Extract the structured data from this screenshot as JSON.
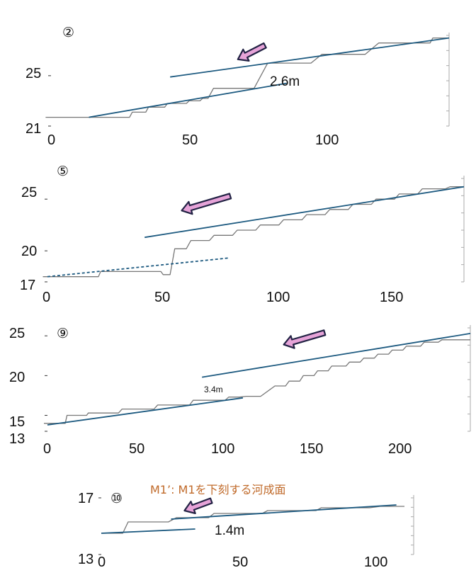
{
  "colors": {
    "profile": "#777777",
    "fit": "#1d5a80",
    "arrow_fill": "#e6a3d8",
    "arrow_edge": "#222244",
    "orange": "#c06a2a",
    "axis": "#aaaaaa"
  },
  "chart_data": [
    {
      "type": "line",
      "panel_label": "②",
      "x_ticks": [
        "0",
        "50",
        "100"
      ],
      "y_ticks": [
        "21",
        "25"
      ],
      "xlim": [
        0,
        147
      ],
      "ylim": [
        21,
        28.2
      ],
      "annotation": "2.6m",
      "series": [
        {
          "role": "profile",
          "points": [
            [
              -2,
              21.7
            ],
            [
              14,
              21.7
            ],
            [
              29,
              21.7
            ],
            [
              30,
              22.1
            ],
            [
              35,
              22.1
            ],
            [
              36,
              22.5
            ],
            [
              42,
              22.5
            ],
            [
              43,
              22.8
            ],
            [
              50,
              22.8
            ],
            [
              51,
              23.0
            ],
            [
              55,
              23.0
            ],
            [
              56,
              23.2
            ],
            [
              58,
              23.2
            ],
            [
              60,
              24.0
            ],
            [
              72,
              24.0
            ],
            [
              75,
              24.0
            ],
            [
              80,
              26.0
            ],
            [
              96,
              26.0
            ],
            [
              100,
              26.7
            ],
            [
              116,
              26.7
            ],
            [
              121,
              27.6
            ],
            [
              140,
              27.6
            ],
            [
              141,
              28.0
            ],
            [
              147,
              28.0
            ]
          ]
        },
        {
          "role": "fit",
          "points": [
            [
              14,
              21.7
            ],
            [
              87,
              24.4
            ]
          ]
        },
        {
          "role": "fit",
          "points": [
            [
              44,
              24.9
            ],
            [
              147,
              28.0
            ]
          ]
        }
      ],
      "arrow": {
        "from": [
          79,
          27.4
        ],
        "to": [
          69,
          26.3
        ]
      }
    },
    {
      "type": "line",
      "panel_label": "⑤",
      "x_ticks": [
        "0",
        "50",
        "100",
        "150"
      ],
      "y_ticks": [
        "17",
        "20",
        "25"
      ],
      "xlim": [
        0,
        180
      ],
      "ylim": [
        17,
        27
      ],
      "series": [
        {
          "role": "profile",
          "points": [
            [
              -2,
              17.5
            ],
            [
              22,
              17.5
            ],
            [
              23,
              18.0
            ],
            [
              49,
              18.0
            ],
            [
              50,
              17.7
            ],
            [
              53,
              17.7
            ],
            [
              55,
              20.2
            ],
            [
              60,
              20.2
            ],
            [
              62,
              21.0
            ],
            [
              70,
              21.0
            ],
            [
              72,
              21.5
            ],
            [
              80,
              21.5
            ],
            [
              82,
              22.0
            ],
            [
              90,
              22.0
            ],
            [
              92,
              22.5
            ],
            [
              100,
              22.5
            ],
            [
              102,
              23.0
            ],
            [
              110,
              23.0
            ],
            [
              112,
              23.5
            ],
            [
              120,
              23.5
            ],
            [
              122,
              24.0
            ],
            [
              130,
              24.0
            ],
            [
              132,
              24.5
            ],
            [
              140,
              24.5
            ],
            [
              142,
              25.0
            ],
            [
              150,
              25.0
            ],
            [
              152,
              25.5
            ],
            [
              160,
              25.5
            ],
            [
              162,
              26.0
            ],
            [
              172,
              26.0
            ],
            [
              174,
              26.2
            ],
            [
              180,
              26.2
            ]
          ]
        },
        {
          "role": "fit",
          "points": [
            [
              42,
              21.3
            ],
            [
              180,
              26.2
            ]
          ]
        },
        {
          "role": "fit_dashed",
          "points": [
            [
              0,
              17.5
            ],
            [
              78,
              19.3
            ]
          ]
        }
      ],
      "arrow": {
        "from": [
          79,
          25.3
        ],
        "to": [
          58,
          23.9
        ]
      }
    },
    {
      "type": "line",
      "panel_label": "⑨",
      "x_ticks": [
        "0",
        "50",
        "100",
        "150",
        "200"
      ],
      "y_ticks": [
        "13",
        "15",
        "20",
        "25"
      ],
      "xlim": [
        0,
        238
      ],
      "ylim": [
        13,
        26
      ],
      "annotation": "3.4m",
      "series": [
        {
          "role": "profile",
          "points": [
            [
              -2,
              14.0
            ],
            [
              10,
              14.0
            ],
            [
              11,
              15.0
            ],
            [
              22,
              15.0
            ],
            [
              23,
              15.3
            ],
            [
              40,
              15.3
            ],
            [
              42,
              15.8
            ],
            [
              60,
              15.8
            ],
            [
              62,
              16.3
            ],
            [
              80,
              16.3
            ],
            [
              82,
              16.9
            ],
            [
              100,
              16.9
            ],
            [
              102,
              17.3
            ],
            [
              108,
              17.3
            ],
            [
              112,
              17.4
            ],
            [
              120,
              17.4
            ],
            [
              128,
              18.7
            ],
            [
              134,
              18.7
            ],
            [
              136,
              19.3
            ],
            [
              142,
              19.3
            ],
            [
              144,
              20.0
            ],
            [
              150,
              20.0
            ],
            [
              152,
              20.6
            ],
            [
              158,
              20.6
            ],
            [
              160,
              21.2
            ],
            [
              168,
              21.2
            ],
            [
              170,
              21.7
            ],
            [
              176,
              21.7
            ],
            [
              178,
              22.2
            ],
            [
              184,
              22.2
            ],
            [
              186,
              22.7
            ],
            [
              192,
              22.7
            ],
            [
              194,
              23.2
            ],
            [
              200,
              23.2
            ],
            [
              202,
              23.7
            ],
            [
              210,
              23.7
            ],
            [
              212,
              24.2
            ],
            [
              220,
              24.2
            ],
            [
              222,
              24.5
            ],
            [
              238,
              24.5
            ]
          ]
        },
        {
          "role": "fit",
          "points": [
            [
              0,
              13.8
            ],
            [
              110,
              17.2
            ]
          ]
        },
        {
          "role": "fit",
          "points": [
            [
              87,
              19.8
            ],
            [
              238,
              25.3
            ]
          ]
        }
      ],
      "arrow": {
        "from": [
          156,
          25.4
        ],
        "to": [
          133,
          23.9
        ]
      }
    },
    {
      "type": "line",
      "panel_label": "⑩",
      "title": "M1’: M1を下刻する河成面",
      "x_ticks": [
        "0",
        "50",
        "100"
      ],
      "y_ticks": [
        "13",
        "17"
      ],
      "xlim": [
        0,
        113
      ],
      "ylim": [
        13,
        17
      ],
      "annotation": "1.4m",
      "series": [
        {
          "role": "profile",
          "points": [
            [
              0,
              14.5
            ],
            [
              8,
              14.5
            ],
            [
              10,
              15.3
            ],
            [
              25,
              15.3
            ],
            [
              28,
              15.6
            ],
            [
              40,
              15.6
            ],
            [
              42,
              15.9
            ],
            [
              60,
              15.9
            ],
            [
              62,
              16.1
            ],
            [
              80,
              16.1
            ],
            [
              82,
              16.3
            ],
            [
              100,
              16.3
            ],
            [
              104,
              16.4
            ],
            [
              113,
              16.4
            ]
          ]
        },
        {
          "role": "fit",
          "points": [
            [
              0,
              14.5
            ],
            [
              35,
              14.8
            ]
          ]
        },
        {
          "role": "fit",
          "points": [
            [
              26,
              15.5
            ],
            [
              110,
              16.5
            ]
          ]
        }
      ],
      "arrow": {
        "from": [
          41,
          16.8
        ],
        "to": [
          31,
          16.1
        ]
      }
    }
  ]
}
